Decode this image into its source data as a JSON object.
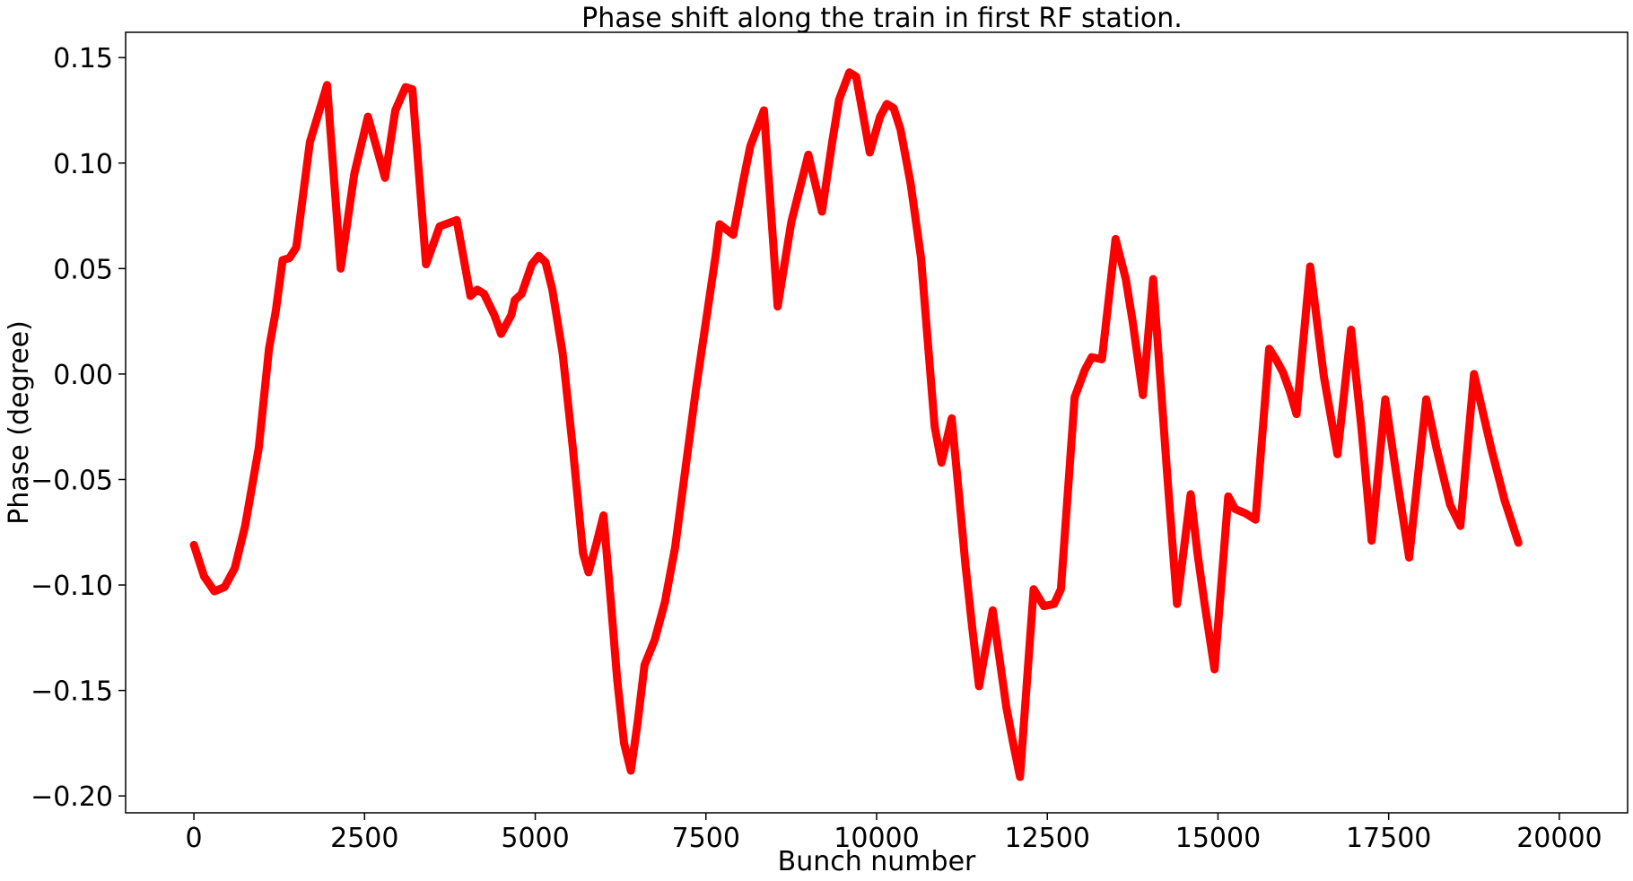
{
  "chart_data": {
    "type": "line",
    "title": "Phase shift along the train in first RF station.",
    "xlabel": "Bunch number",
    "ylabel": "Phase (degree)",
    "xlim": [
      -1000,
      21000
    ],
    "ylim": [
      -0.208,
      0.162
    ],
    "x_ticks": [
      {
        "value": 0,
        "label": "0"
      },
      {
        "value": 2500,
        "label": "2500"
      },
      {
        "value": 5000,
        "label": "5000"
      },
      {
        "value": 7500,
        "label": "7500"
      },
      {
        "value": 10000,
        "label": "10000"
      },
      {
        "value": 12500,
        "label": "12500"
      },
      {
        "value": 15000,
        "label": "15000"
      },
      {
        "value": 17500,
        "label": "17500"
      },
      {
        "value": 20000,
        "label": "20000"
      }
    ],
    "y_ticks": [
      {
        "value": 0.15,
        "label": "0.15"
      },
      {
        "value": 0.1,
        "label": "0.10"
      },
      {
        "value": 0.05,
        "label": "0.05"
      },
      {
        "value": 0.0,
        "label": "0.00"
      },
      {
        "value": -0.05,
        "label": "−0.05"
      },
      {
        "value": -0.1,
        "label": "−0.10"
      },
      {
        "value": -0.15,
        "label": "−0.15"
      },
      {
        "value": -0.2,
        "label": "−0.20"
      }
    ],
    "grid": false,
    "legend": "none",
    "series": [
      {
        "color": "#ff0000",
        "points": [
          [
            0,
            -0.081
          ],
          [
            150,
            -0.096
          ],
          [
            300,
            -0.103
          ],
          [
            450,
            -0.101
          ],
          [
            600,
            -0.092
          ],
          [
            750,
            -0.072
          ],
          [
            950,
            -0.035
          ],
          [
            1100,
            0.012
          ],
          [
            1200,
            0.03
          ],
          [
            1300,
            0.054
          ],
          [
            1400,
            0.055
          ],
          [
            1500,
            0.06
          ],
          [
            1700,
            0.11
          ],
          [
            1950,
            0.137
          ],
          [
            2150,
            0.05
          ],
          [
            2350,
            0.095
          ],
          [
            2550,
            0.122
          ],
          [
            2800,
            0.093
          ],
          [
            2950,
            0.125
          ],
          [
            3100,
            0.136
          ],
          [
            3200,
            0.135
          ],
          [
            3400,
            0.052
          ],
          [
            3600,
            0.07
          ],
          [
            3850,
            0.073
          ],
          [
            4050,
            0.037
          ],
          [
            4150,
            0.04
          ],
          [
            4250,
            0.038
          ],
          [
            4400,
            0.028
          ],
          [
            4500,
            0.019
          ],
          [
            4650,
            0.028
          ],
          [
            4700,
            0.035
          ],
          [
            4800,
            0.038
          ],
          [
            4950,
            0.052
          ],
          [
            5050,
            0.056
          ],
          [
            5150,
            0.053
          ],
          [
            5250,
            0.04
          ],
          [
            5400,
            0.01
          ],
          [
            5550,
            -0.035
          ],
          [
            5700,
            -0.085
          ],
          [
            5780,
            -0.094
          ],
          [
            5900,
            -0.08
          ],
          [
            6000,
            -0.067
          ],
          [
            6100,
            -0.105
          ],
          [
            6200,
            -0.145
          ],
          [
            6300,
            -0.175
          ],
          [
            6400,
            -0.188
          ],
          [
            6500,
            -0.165
          ],
          [
            6600,
            -0.138
          ],
          [
            6750,
            -0.126
          ],
          [
            6900,
            -0.108
          ],
          [
            7050,
            -0.082
          ],
          [
            7200,
            -0.045
          ],
          [
            7350,
            -0.008
          ],
          [
            7500,
            0.025
          ],
          [
            7650,
            0.058
          ],
          [
            7700,
            0.071
          ],
          [
            7900,
            0.066
          ],
          [
            8050,
            0.092
          ],
          [
            8150,
            0.108
          ],
          [
            8350,
            0.125
          ],
          [
            8550,
            0.032
          ],
          [
            8750,
            0.072
          ],
          [
            9000,
            0.104
          ],
          [
            9200,
            0.077
          ],
          [
            9350,
            0.11
          ],
          [
            9450,
            0.13
          ],
          [
            9600,
            0.143
          ],
          [
            9700,
            0.141
          ],
          [
            9900,
            0.105
          ],
          [
            10050,
            0.122
          ],
          [
            10150,
            0.128
          ],
          [
            10250,
            0.126
          ],
          [
            10350,
            0.116
          ],
          [
            10500,
            0.09
          ],
          [
            10650,
            0.055
          ],
          [
            10750,
            0.015
          ],
          [
            10850,
            -0.025
          ],
          [
            10950,
            -0.042
          ],
          [
            11100,
            -0.021
          ],
          [
            11200,
            -0.055
          ],
          [
            11300,
            -0.09
          ],
          [
            11400,
            -0.12
          ],
          [
            11500,
            -0.148
          ],
          [
            11700,
            -0.112
          ],
          [
            11800,
            -0.135
          ],
          [
            11900,
            -0.158
          ],
          [
            12000,
            -0.175
          ],
          [
            12100,
            -0.191
          ],
          [
            12300,
            -0.102
          ],
          [
            12450,
            -0.11
          ],
          [
            12600,
            -0.109
          ],
          [
            12700,
            -0.102
          ],
          [
            12900,
            -0.011
          ],
          [
            13050,
            0.002
          ],
          [
            13150,
            0.008
          ],
          [
            13300,
            0.007
          ],
          [
            13500,
            0.064
          ],
          [
            13650,
            0.045
          ],
          [
            13750,
            0.025
          ],
          [
            13900,
            -0.01
          ],
          [
            14050,
            0.045
          ],
          [
            14250,
            -0.045
          ],
          [
            14400,
            -0.109
          ],
          [
            14600,
            -0.057
          ],
          [
            14700,
            -0.085
          ],
          [
            14800,
            -0.108
          ],
          [
            14950,
            -0.14
          ],
          [
            15150,
            -0.058
          ],
          [
            15250,
            -0.064
          ],
          [
            15400,
            -0.066
          ],
          [
            15550,
            -0.069
          ],
          [
            15750,
            0.012
          ],
          [
            15850,
            0.007
          ],
          [
            15950,
            0.001
          ],
          [
            16050,
            -0.008
          ],
          [
            16150,
            -0.019
          ],
          [
            16350,
            0.051
          ],
          [
            16550,
            -0.001
          ],
          [
            16750,
            -0.038
          ],
          [
            16950,
            0.021
          ],
          [
            17100,
            -0.025
          ],
          [
            17250,
            -0.079
          ],
          [
            17450,
            -0.012
          ],
          [
            17600,
            -0.045
          ],
          [
            17700,
            -0.066
          ],
          [
            17800,
            -0.087
          ],
          [
            18050,
            -0.012
          ],
          [
            18200,
            -0.035
          ],
          [
            18400,
            -0.062
          ],
          [
            18550,
            -0.072
          ],
          [
            18750,
            0.0
          ],
          [
            19000,
            -0.035
          ],
          [
            19200,
            -0.06
          ],
          [
            19400,
            -0.08
          ]
        ]
      }
    ]
  }
}
